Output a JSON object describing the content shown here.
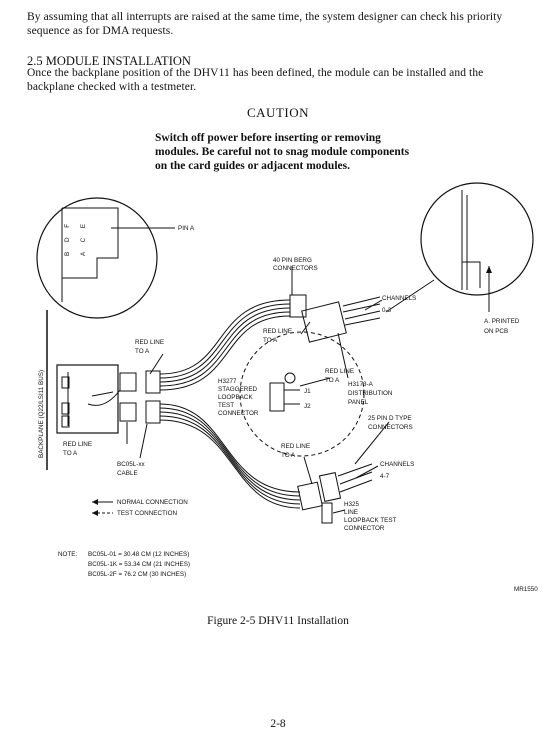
{
  "intro": {
    "line1": "By assuming that all interrupts are raised at the same time, the system designer can check his priority",
    "line2": "sequence as for DMA requests."
  },
  "section": {
    "heading": "2.5  MODULE INSTALLATION",
    "line1": "Once the backplane position of the DHV11 has been defined, the module can be installed and the",
    "line2": "backplane checked with a testmeter."
  },
  "caution": {
    "title": "CAUTION",
    "line1": "Switch off power before inserting or removing",
    "line2": "modules. Be careful not to snag module components",
    "line3": "on the card guides or adjacent modules."
  },
  "figure": {
    "pin_a": "PIN A",
    "pin_row1": "B D F",
    "pin_row2": "A C E",
    "berg_1": "40 PIN BERG",
    "berg_2": "CONNECTORS",
    "channels_03_1": "CHANNELS",
    "channels_03_2": "0-3",
    "printed_1": "A. PRINTED",
    "printed_2": "ON PCB",
    "backplane": "BACKPLANE (Q22/LSI11 BUS)",
    "red_line_1": "RED LINE",
    "red_line_2": "TO A",
    "h3277_1": "H3277",
    "h3277_2": "STAGGERED",
    "h3277_3": "LOOPBACK",
    "h3277_4": "TEST",
    "h3277_5": "CONNECTOR",
    "j1": "J1",
    "j2": "J2",
    "h3173_1": "H3173-A",
    "h3173_2": "DISTRIBUTION",
    "h3173_3": "PANEL",
    "pin25_1": "25 PIN D TYPE",
    "pin25_2": "CONNECTORS",
    "channels_47_1": "CHANNELS",
    "channels_47_2": "4-7",
    "bc05l_1": "BC05L-xx",
    "bc05l_2": "CABLE",
    "h325_1": "H325",
    "h325_2": "LINE",
    "h325_3": "LOOPBACK TEST",
    "h325_4": "CONNECTOR",
    "legend_normal": "NORMAL CONNECTION",
    "legend_test": "TEST CONNECTION",
    "note_label": "NOTE:",
    "note_1": "BC05L-01 = 30.48 CM (12 INCHES)",
    "note_2": "BC05L-1K = 53.34 CM (21 INCHES)",
    "note_3": "BC05L-2F = 76.2 CM (30 INCHES)",
    "art_code": "MR1550"
  },
  "caption": "Figure 2-5    DHV11 Installation",
  "page_number": "2-8"
}
